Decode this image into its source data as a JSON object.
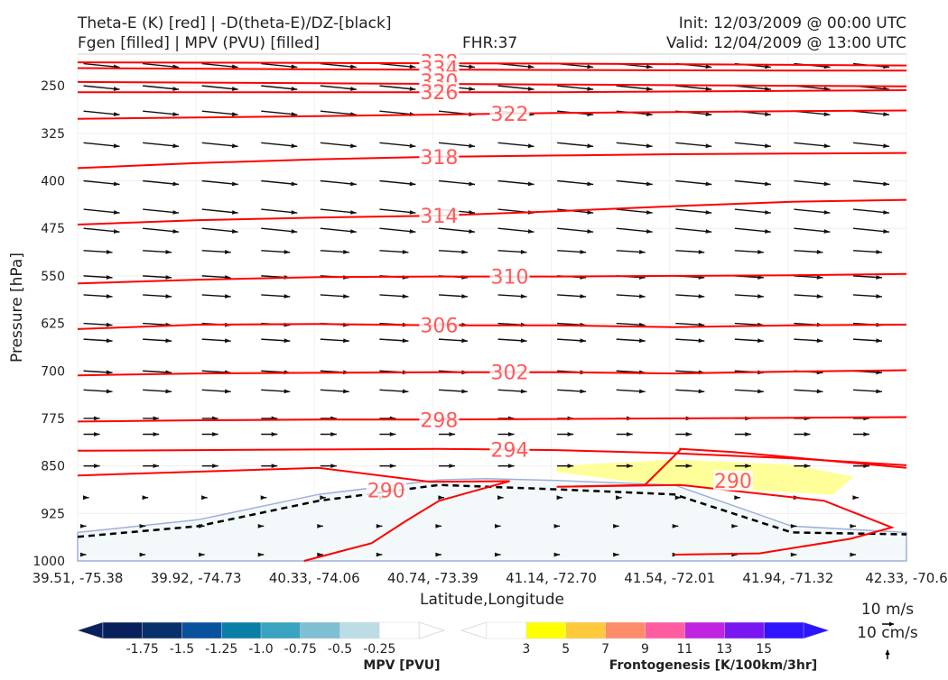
{
  "header": {
    "title_line1": "Theta-E (K) [red] | -D(theta-E)/DZ-[black]",
    "title_line2": "Fgen [filled] | MPV (PVU) [filled]",
    "fhr": "FHR:37",
    "init": "Init: 12/03/2009 @ 00:00 UTC",
    "valid": "Valid: 12/04/2009 @ 13:00 UTC"
  },
  "chart_data": {
    "type": "cross-section",
    "ylabel": "Pressure [hPa]",
    "xlabel": "Latitude,Longitude",
    "x_ticks": [
      "39.51, -75.38",
      "39.92, -74.73",
      "40.33, -74.06",
      "40.74, -73.39",
      "41.14, -72.70",
      "41.54, -72.01",
      "41.94, -71.32",
      "42.33, -70.6"
    ],
    "y_ticks": [
      250,
      325,
      400,
      475,
      550,
      625,
      700,
      775,
      850,
      925,
      1000
    ],
    "ylim": [
      1000,
      200
    ],
    "y_scale": "linear, inverted",
    "theta_e_contours": {
      "color": "#ff0000",
      "label_color": "#ff5a5a",
      "levels": [
        {
          "label": "338",
          "x": [
            39.51,
            40.33,
            41.14,
            41.94,
            42.33
          ],
          "p": [
            213,
            214,
            215,
            217,
            218
          ]
        },
        {
          "label": "334",
          "x": [
            39.51,
            40.33,
            41.14,
            41.94,
            42.33
          ],
          "p": [
            222,
            224,
            225,
            226,
            226
          ]
        },
        {
          "label": "330",
          "x": [
            39.51,
            40.33,
            41.14,
            41.94,
            42.33
          ],
          "p": [
            244,
            246,
            248,
            250,
            251
          ]
        },
        {
          "label": "326",
          "x": [
            39.51,
            40.33,
            41.14,
            41.94,
            42.33
          ],
          "p": [
            260,
            260,
            260,
            258,
            257
          ]
        },
        {
          "label": "322",
          "x": [
            39.51,
            40.33,
            41.14,
            41.94,
            42.33
          ],
          "p": [
            302,
            298,
            293,
            290,
            289
          ]
        },
        {
          "label": "318",
          "x": [
            39.51,
            39.92,
            40.33,
            40.74,
            41.14,
            41.54,
            41.94,
            42.33
          ],
          "p": [
            380,
            372,
            366,
            362,
            360,
            358,
            357,
            356
          ]
        },
        {
          "label": "314",
          "x": [
            39.51,
            39.92,
            40.33,
            40.74,
            41.14,
            41.54,
            41.94,
            42.33
          ],
          "p": [
            469,
            462,
            458,
            455,
            448,
            440,
            433,
            430
          ]
        },
        {
          "label": "310",
          "x": [
            39.51,
            39.92,
            40.33,
            40.74,
            41.14,
            41.54,
            41.94,
            42.33
          ],
          "p": [
            562,
            556,
            552,
            551,
            551,
            550,
            549,
            547
          ]
        },
        {
          "label": "306",
          "x": [
            39.51,
            39.92,
            40.33,
            40.74,
            41.14,
            41.54,
            41.94,
            42.33
          ],
          "p": [
            634,
            627,
            626,
            628,
            628,
            631,
            628,
            627
          ]
        },
        {
          "label": "302",
          "x": [
            39.51,
            39.92,
            40.33,
            40.74,
            41.14,
            41.54,
            41.94,
            42.33
          ],
          "p": [
            707,
            704,
            703,
            702,
            702,
            704,
            701,
            699
          ]
        },
        {
          "label": "298",
          "x": [
            39.51,
            39.92,
            40.33,
            40.74,
            41.14,
            41.54,
            41.94,
            42.33
          ],
          "p": [
            780,
            778,
            777,
            777,
            776,
            775,
            774,
            773
          ]
        },
        {
          "label": "294",
          "x": [
            39.51,
            39.92,
            40.33,
            40.74,
            41.14,
            41.54,
            41.94,
            42.33
          ],
          "p": [
            826,
            825,
            824,
            823,
            825,
            830,
            838,
            849
          ]
        },
        {
          "label": "290",
          "x": [
            39.51,
            40.33,
            40.71,
            40.98,
            40.74,
            40.63,
            40.51,
            40.28
          ],
          "p": [
            865,
            853,
            875,
            874,
            905,
            936,
            972,
            1000
          ]
        },
        {
          "label": "290",
          "x": [
            42.33,
            41.74,
            41.56,
            41.56,
            41.44,
            41.14,
            41.56,
            42.05,
            42.28,
            42.14,
            41.83,
            41.54
          ],
          "p": [
            853,
            828,
            823,
            825,
            880,
            883,
            880,
            905,
            947,
            965,
            988,
            990
          ]
        }
      ]
    },
    "mpv": {
      "label": "MPV [PVU]",
      "ticks": [
        "-1.75",
        "-1.5",
        "-1.25",
        "-1.0",
        "-0.75",
        "-0.5",
        "-0.25"
      ],
      "colors": [
        "#08215c",
        "#08306b",
        "#08519c",
        "#0a7fa6",
        "#3aa3c0",
        "#7ebfd3",
        "#bcdde6",
        "#ffffff"
      ],
      "region_color": "#f3f9fa",
      "region_outline_color": "#9fb0d8"
    },
    "frontogenesis": {
      "label": "Frontogenesis [K/100km/3hr]",
      "ticks": [
        "3",
        "5",
        "7",
        "9",
        "11",
        "13",
        "15"
      ],
      "colors": [
        "#ffffff",
        "#ffff00",
        "#ffc93c",
        "#ff8c69",
        "#ff5da2",
        "#c024e0",
        "#7a16f0",
        "#2e14ff"
      ],
      "region_color": "#ffff9a"
    },
    "dthetae_dz_zero_line": {
      "color": "#000000",
      "style": "dashed",
      "x": [
        39.51,
        39.92,
        40.33,
        40.74,
        41.14,
        41.54,
        41.94,
        42.33
      ],
      "p": [
        962,
        945,
        905,
        880,
        887,
        895,
        955,
        958
      ]
    },
    "wind_reference": {
      "u_label": "10 m/s",
      "w_label": "10 cm/s"
    }
  }
}
